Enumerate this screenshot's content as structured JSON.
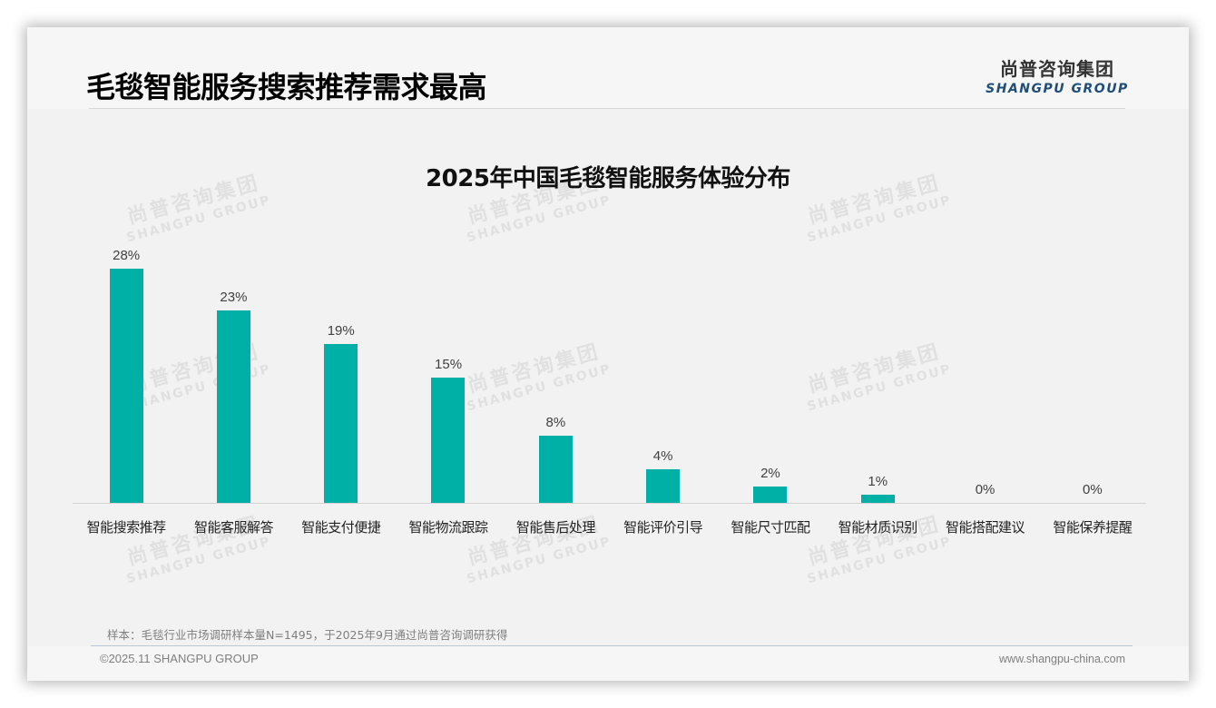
{
  "header": {
    "page_title": "毛毯智能服务搜索推荐需求最高",
    "logo_cn": "尚普咨询集团",
    "logo_en": "SHANGPU GROUP"
  },
  "watermark": {
    "cn": "尚普咨询集团",
    "en": "SHANGPU GROUP"
  },
  "colors": {
    "bar": "#00b0a6",
    "logo_en": "#1f4e79",
    "background": "#f2f2f2"
  },
  "chart_data": {
    "type": "bar",
    "title": "2025年中国毛毯智能服务体验分布",
    "xlabel": "",
    "ylabel": "",
    "ylim": [
      0,
      30
    ],
    "grid": false,
    "legend": "none",
    "categories": [
      "智能搜索推荐",
      "智能客服解答",
      "智能支付便捷",
      "智能物流跟踪",
      "智能售后处理",
      "智能评价引导",
      "智能尺寸匹配",
      "智能材质识别",
      "智能搭配建议",
      "智能保养提醒"
    ],
    "values": [
      28,
      23,
      19,
      15,
      8,
      4,
      2,
      1,
      0,
      0
    ],
    "labels": [
      "28%",
      "23%",
      "19%",
      "15%",
      "8%",
      "4%",
      "2%",
      "1%",
      "0%",
      "0%"
    ],
    "unit": "%"
  },
  "footer": {
    "source_note": "样本：毛毯行业市场调研样本量N=1495，于2025年9月通过尚普咨询调研获得",
    "copyright": "©2025.11 SHANGPU GROUP",
    "website": "www.shangpu-china.com"
  }
}
